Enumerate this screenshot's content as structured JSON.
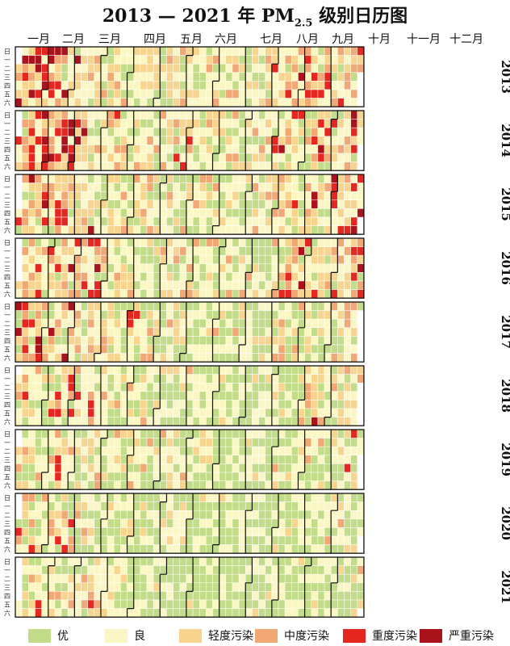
{
  "title": {
    "prefix": "2013 — 2021 年 PM",
    "sub": "2.5",
    "suffix": " 级别日历图"
  },
  "colors": {
    "优": "#c2dc8a",
    "良": "#fbf7c4",
    "轻度污染": "#f7d58f",
    "中度污染": "#f2a875",
    "重度污染": "#e5271f",
    "严重污染": "#a9131b"
  },
  "chart_data": {
    "type": "heatmap",
    "title": "2013 — 2021 年 PM2.5 级别日历图",
    "years": [
      "2013",
      "2014",
      "2015",
      "2016",
      "2017",
      "2018",
      "2019",
      "2020",
      "2021"
    ],
    "months": [
      "一月",
      "二月",
      "三月",
      "四月",
      "五月",
      "六月",
      "七月",
      "八月",
      "九月",
      "十月",
      "十一月",
      "十二月"
    ],
    "weekdays": [
      "日",
      "一",
      "二",
      "三",
      "四",
      "五",
      "六"
    ],
    "categories": [
      "优",
      "良",
      "轻度污染",
      "中度污染",
      "重度污染",
      "严重污染"
    ],
    "level_index": {
      "0": "优",
      "1": "良",
      "2": "轻度污染",
      "3": "中度污染",
      "4": "重度污染",
      "5": "严重污染"
    },
    "monthly_level_distribution_percent": {
      "2013": [
        [
          5,
          15,
          25,
          20,
          20,
          15
        ],
        [
          8,
          17,
          25,
          20,
          18,
          12
        ],
        [
          10,
          25,
          30,
          20,
          10,
          5
        ],
        [
          25,
          40,
          20,
          10,
          5,
          0
        ],
        [
          20,
          40,
          25,
          10,
          5,
          0
        ],
        [
          15,
          35,
          30,
          15,
          5,
          0
        ],
        [
          30,
          40,
          20,
          10,
          0,
          0
        ],
        [
          30,
          40,
          20,
          10,
          0,
          0
        ],
        [
          25,
          40,
          20,
          10,
          5,
          0
        ],
        [
          15,
          30,
          25,
          15,
          10,
          5
        ],
        [
          10,
          25,
          30,
          20,
          10,
          5
        ],
        [
          8,
          20,
          30,
          20,
          15,
          7
        ]
      ],
      "2014": [
        [
          8,
          20,
          25,
          20,
          17,
          10
        ],
        [
          5,
          15,
          25,
          20,
          20,
          15
        ],
        [
          15,
          25,
          30,
          15,
          10,
          5
        ],
        [
          20,
          40,
          25,
          10,
          5,
          0
        ],
        [
          25,
          40,
          25,
          10,
          0,
          0
        ],
        [
          20,
          40,
          25,
          10,
          5,
          0
        ],
        [
          20,
          35,
          30,
          10,
          5,
          0
        ],
        [
          30,
          40,
          20,
          10,
          0,
          0
        ],
        [
          30,
          40,
          20,
          10,
          0,
          0
        ],
        [
          20,
          30,
          20,
          10,
          12,
          8
        ],
        [
          15,
          30,
          20,
          15,
          12,
          8
        ],
        [
          15,
          30,
          25,
          15,
          10,
          5
        ]
      ],
      "2015": [
        [
          10,
          25,
          25,
          20,
          15,
          5
        ],
        [
          12,
          25,
          25,
          20,
          13,
          5
        ],
        [
          20,
          30,
          25,
          15,
          8,
          2
        ],
        [
          30,
          40,
          20,
          10,
          0,
          0
        ],
        [
          30,
          40,
          20,
          10,
          0,
          0
        ],
        [
          30,
          40,
          20,
          10,
          0,
          0
        ],
        [
          35,
          40,
          15,
          10,
          0,
          0
        ],
        [
          40,
          40,
          15,
          5,
          0,
          0
        ],
        [
          35,
          40,
          15,
          10,
          0,
          0
        ],
        [
          20,
          35,
          20,
          10,
          10,
          5
        ],
        [
          15,
          30,
          20,
          15,
          12,
          8
        ],
        [
          10,
          20,
          20,
          15,
          20,
          15
        ]
      ],
      "2016": [
        [
          20,
          30,
          20,
          15,
          10,
          5
        ],
        [
          20,
          35,
          25,
          10,
          7,
          3
        ],
        [
          15,
          30,
          25,
          15,
          10,
          5
        ],
        [
          30,
          40,
          20,
          10,
          0,
          0
        ],
        [
          35,
          40,
          15,
          10,
          0,
          0
        ],
        [
          35,
          40,
          20,
          5,
          0,
          0
        ],
        [
          40,
          40,
          15,
          5,
          0,
          0
        ],
        [
          45,
          40,
          10,
          5,
          0,
          0
        ],
        [
          35,
          40,
          15,
          10,
          0,
          0
        ],
        [
          25,
          35,
          20,
          10,
          7,
          3
        ],
        [
          20,
          30,
          25,
          15,
          7,
          3
        ],
        [
          10,
          25,
          25,
          15,
          15,
          10
        ]
      ],
      "2017": [
        [
          15,
          25,
          20,
          15,
          15,
          10
        ],
        [
          20,
          30,
          25,
          15,
          7,
          3
        ],
        [
          25,
          35,
          25,
          10,
          5,
          0
        ],
        [
          35,
          40,
          15,
          10,
          0,
          0
        ],
        [
          35,
          40,
          15,
          5,
          5,
          0
        ],
        [
          40,
          40,
          15,
          5,
          0,
          0
        ],
        [
          45,
          40,
          10,
          5,
          0,
          0
        ],
        [
          50,
          35,
          10,
          5,
          0,
          0
        ],
        [
          40,
          40,
          15,
          5,
          0,
          0
        ],
        [
          35,
          35,
          20,
          10,
          0,
          0
        ],
        [
          30,
          40,
          20,
          7,
          3,
          0
        ],
        [
          30,
          40,
          20,
          10,
          0,
          0
        ]
      ],
      "2018": [
        [
          30,
          40,
          20,
          7,
          3,
          0
        ],
        [
          25,
          35,
          20,
          10,
          7,
          3
        ],
        [
          20,
          35,
          20,
          10,
          10,
          5
        ],
        [
          35,
          40,
          15,
          10,
          0,
          0
        ],
        [
          35,
          40,
          15,
          10,
          0,
          0
        ],
        [
          40,
          40,
          15,
          5,
          0,
          0
        ],
        [
          45,
          40,
          10,
          5,
          0,
          0
        ],
        [
          55,
          35,
          10,
          0,
          0,
          0
        ],
        [
          45,
          40,
          10,
          5,
          0,
          0
        ],
        [
          45,
          40,
          10,
          5,
          0,
          0
        ],
        [
          25,
          40,
          20,
          8,
          5,
          2
        ],
        [
          35,
          40,
          15,
          5,
          5,
          0
        ]
      ],
      "2019": [
        [
          30,
          40,
          20,
          10,
          0,
          0
        ],
        [
          30,
          35,
          20,
          10,
          5,
          0
        ],
        [
          30,
          40,
          20,
          8,
          2,
          0
        ],
        [
          40,
          45,
          10,
          5,
          0,
          0
        ],
        [
          45,
          40,
          10,
          5,
          0,
          0
        ],
        [
          45,
          40,
          10,
          5,
          0,
          0
        ],
        [
          55,
          35,
          10,
          0,
          0,
          0
        ],
        [
          60,
          35,
          5,
          0,
          0,
          0
        ],
        [
          50,
          40,
          10,
          0,
          0,
          0
        ],
        [
          45,
          40,
          10,
          5,
          0,
          0
        ],
        [
          40,
          40,
          15,
          5,
          0,
          0
        ],
        [
          35,
          40,
          15,
          7,
          3,
          0
        ]
      ],
      "2020": [
        [
          25,
          35,
          20,
          10,
          10,
          0
        ],
        [
          25,
          35,
          15,
          10,
          15,
          0
        ],
        [
          40,
          40,
          15,
          5,
          0,
          0
        ],
        [
          50,
          40,
          10,
          0,
          0,
          0
        ],
        [
          50,
          40,
          10,
          0,
          0,
          0
        ],
        [
          50,
          40,
          10,
          0,
          0,
          0
        ],
        [
          60,
          35,
          5,
          0,
          0,
          0
        ],
        [
          65,
          30,
          5,
          0,
          0,
          0
        ],
        [
          55,
          40,
          5,
          0,
          0,
          0
        ],
        [
          55,
          35,
          10,
          0,
          0,
          0
        ],
        [
          45,
          40,
          10,
          5,
          0,
          0
        ],
        [
          45,
          40,
          10,
          5,
          0,
          0
        ]
      ],
      "2021": [
        [
          40,
          40,
          10,
          5,
          5,
          0
        ],
        [
          30,
          35,
          15,
          10,
          7,
          3
        ],
        [
          25,
          35,
          20,
          10,
          7,
          3
        ],
        [
          55,
          35,
          10,
          0,
          0,
          0
        ],
        [
          55,
          35,
          10,
          0,
          0,
          0
        ],
        [
          60,
          35,
          5,
          0,
          0,
          0
        ],
        [
          70,
          25,
          5,
          0,
          0,
          0
        ],
        [
          75,
          25,
          0,
          0,
          0,
          0
        ],
        [
          65,
          30,
          5,
          0,
          0,
          0
        ],
        [
          55,
          35,
          7,
          3,
          0,
          0
        ],
        [
          50,
          40,
          10,
          0,
          0,
          0
        ],
        [
          50,
          40,
          7,
          3,
          0,
          0
        ]
      ]
    }
  }
}
